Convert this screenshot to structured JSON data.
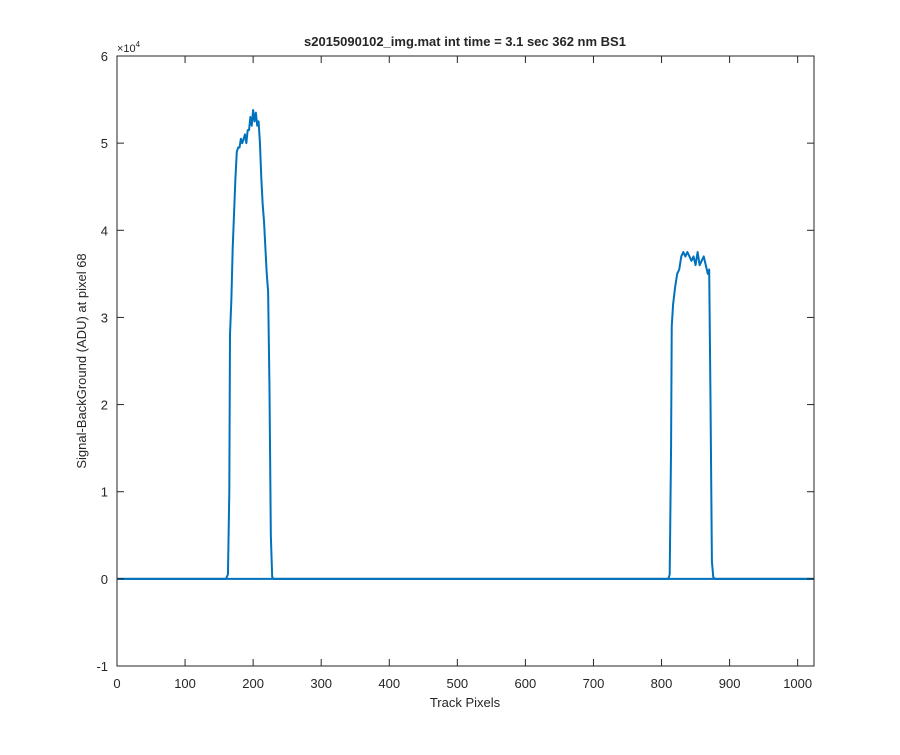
{
  "chart_data": {
    "type": "line",
    "title": "s2015090102_img.mat int time = 3.1 sec  362 nm BS1",
    "xlabel": "Track Pixels",
    "ylabel": "Signal-BackGround (ADU) at pixel 68",
    "xlim": [
      0,
      1024
    ],
    "ylim": [
      -10000,
      60000
    ],
    "y_exponent_label": "×10",
    "y_exponent_power": "4",
    "x_ticks": [
      0,
      100,
      200,
      300,
      400,
      500,
      600,
      700,
      800,
      900,
      1000
    ],
    "x_tick_labels": [
      "0",
      "100",
      "200",
      "300",
      "400",
      "500",
      "600",
      "700",
      "800",
      "900",
      "1000"
    ],
    "y_ticks": [
      -10000,
      0,
      10000,
      20000,
      30000,
      40000,
      50000,
      60000
    ],
    "y_tick_labels": [
      "-1",
      "0",
      "1",
      "2",
      "3",
      "4",
      "5",
      "6"
    ],
    "grid": false,
    "line_color": "#0072BD",
    "axis_color": "#262626",
    "series": [
      {
        "x": [
          0,
          160,
          163,
          165,
          166,
          168,
          170,
          172,
          174,
          176,
          178,
          180,
          182,
          184,
          186,
          188,
          190,
          192,
          194,
          196,
          198,
          200,
          202,
          204,
          206,
          208,
          210,
          212,
          214,
          216,
          218,
          220,
          222,
          224,
          226,
          228,
          230,
          1024
        ],
        "y": [
          0,
          0,
          500,
          10000,
          28000,
          32000,
          38000,
          42000,
          46000,
          49000,
          49500,
          49500,
          50500,
          50000,
          50500,
          51000,
          50000,
          51500,
          51500,
          53000,
          52000,
          53800,
          52500,
          53500,
          52000,
          52500,
          50000,
          46000,
          43000,
          41000,
          38000,
          35000,
          33000,
          22000,
          5000,
          200,
          0,
          0
        ]
      },
      {
        "x": [
          0,
          810,
          812,
          814,
          815,
          817,
          820,
          823,
          826,
          829,
          832,
          835,
          838,
          841,
          844,
          847,
          850,
          853,
          856,
          859,
          862,
          865,
          868,
          870,
          872,
          874,
          876,
          878,
          1024
        ],
        "y": [
          0,
          0,
          500,
          15000,
          29000,
          31500,
          33500,
          35000,
          35500,
          37000,
          37500,
          37000,
          37500,
          37000,
          36500,
          37000,
          36000,
          37500,
          36000,
          36500,
          37000,
          36000,
          35000,
          35500,
          20000,
          2000,
          200,
          0,
          0
        ]
      }
    ]
  }
}
